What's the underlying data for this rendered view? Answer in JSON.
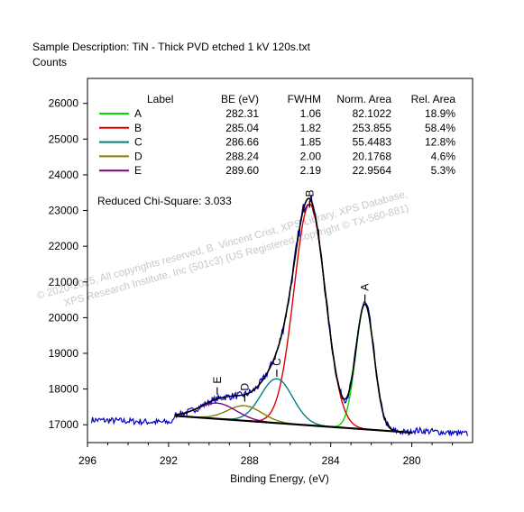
{
  "header": {
    "sample_description": "Sample Description:  TiN - Thick PVD etched 1 kV 120s.txt",
    "y_units": "Counts"
  },
  "watermark": {
    "line1": "©  2020-2025,  All copyrights reserved,   B. Vincent Crist,  XPS Library, XPS Database,",
    "line2": "XPS Research Institute, Inc (501c3)   (US Registered Copyright © TX-560-881)"
  },
  "table": {
    "headers": [
      "Label",
      "BE (eV)",
      "FWHM",
      "Norm. Area",
      "Rel. Area"
    ],
    "rows": [
      {
        "label": "A",
        "be": "282.31",
        "fwhm": "1.06",
        "norm_area": "82.1022",
        "rel_area": "18.9%",
        "color": "#00dd00"
      },
      {
        "label": "B",
        "be": "285.04",
        "fwhm": "1.82",
        "norm_area": "253.855",
        "rel_area": "58.4%",
        "color": "#dd0000"
      },
      {
        "label": "C",
        "be": "286.66",
        "fwhm": "1.85",
        "norm_area": "55.4483",
        "rel_area": "12.8%",
        "color": "#008080"
      },
      {
        "label": "D",
        "be": "288.24",
        "fwhm": "2.00",
        "norm_area": "20.1768",
        "rel_area": "4.6%",
        "color": "#808000"
      },
      {
        "label": "E",
        "be": "289.60",
        "fwhm": "2.19",
        "norm_area": "22.9564",
        "rel_area": "5.3%",
        "color": "#800080"
      }
    ]
  },
  "chi_square": "Reduced Chi-Square: 3.033",
  "chart_data": {
    "type": "line",
    "xlabel": "Binding Energy, (eV)",
    "ylabel": "Counts",
    "xlim": [
      296,
      277
    ],
    "ylim": [
      16500,
      26700
    ],
    "x_reversed": true,
    "x_ticks": [
      296,
      292,
      288,
      284,
      280
    ],
    "y_ticks": [
      17000,
      18000,
      19000,
      20000,
      21000,
      22000,
      23000,
      24000,
      25000,
      26000
    ],
    "background": {
      "x": [
        291.7,
        280.0
      ],
      "y": [
        17250,
        16780
      ]
    },
    "peaks": [
      {
        "name": "A",
        "center": 282.31,
        "fwhm": 1.06,
        "height": 3500,
        "color": "#00dd00"
      },
      {
        "name": "B",
        "center": 285.04,
        "fwhm": 1.82,
        "height": 6200,
        "color": "#dd0000"
      },
      {
        "name": "C",
        "center": 286.66,
        "fwhm": 1.85,
        "height": 1240,
        "color": "#008080"
      },
      {
        "name": "D",
        "center": 288.24,
        "fwhm": 2.0,
        "height": 420,
        "color": "#808000"
      },
      {
        "name": "E",
        "center": 289.6,
        "fwhm": 2.19,
        "height": 440,
        "color": "#800080"
      }
    ],
    "peak_labels": [
      {
        "text": "A",
        "x": 282.31,
        "y": 20750
      },
      {
        "text": "B",
        "x": 285.04,
        "y": 23380
      },
      {
        "text": "C",
        "x": 286.66,
        "y": 18650
      },
      {
        "text": "D",
        "x": 288.24,
        "y": 17950
      },
      {
        "text": "E",
        "x": 289.6,
        "y": 18150
      }
    ],
    "colors": {
      "raw_data": "#0000cc",
      "envelope": "#000000",
      "background": "#000000"
    }
  }
}
